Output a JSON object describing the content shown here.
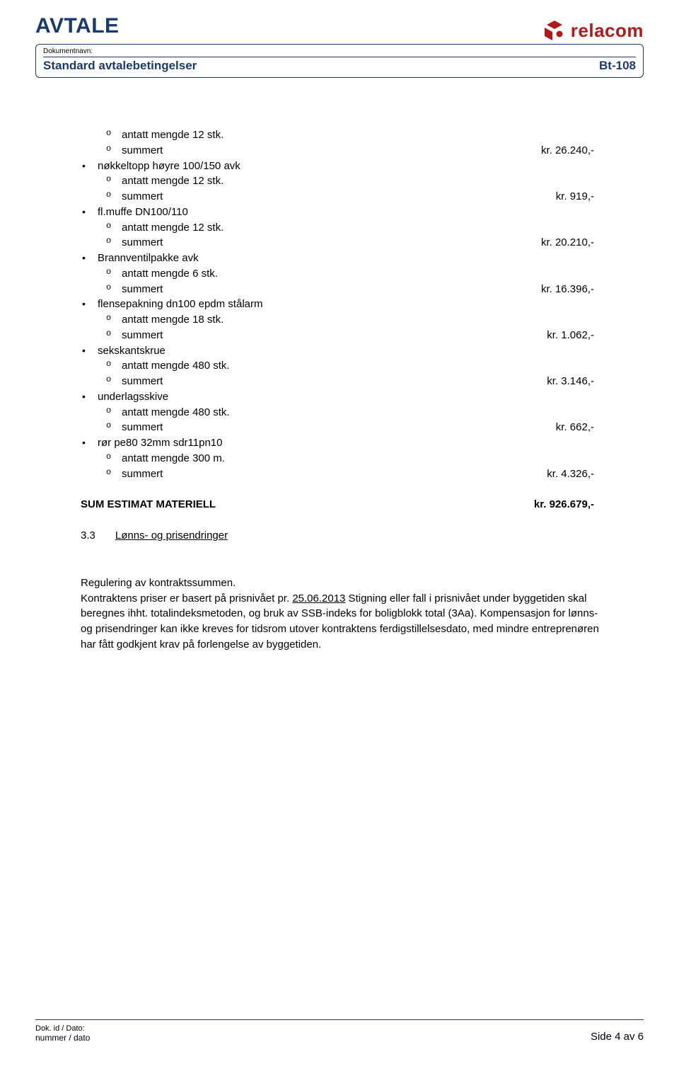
{
  "header": {
    "title": "AVTALE",
    "doc_label": "Dokumentnavn:",
    "doc_name": "Standard avtalebetingelser",
    "doc_code": "Bt-108",
    "logo_text": "relacom",
    "logo_color": "#b01a1a",
    "border_color": "#1a3a6e"
  },
  "items": [
    {
      "label": null,
      "subs": [
        {
          "text": "antatt mengde 12 stk.",
          "price": null
        },
        {
          "text": "summert",
          "price": "kr. 26.240,-"
        }
      ]
    },
    {
      "label": "nøkkeltopp høyre 100/150 avk",
      "subs": [
        {
          "text": "antatt mengde 12 stk.",
          "price": null
        },
        {
          "text": "summert",
          "price": "kr. 919,-"
        }
      ]
    },
    {
      "label": "fl.muffe DN100/110",
      "subs": [
        {
          "text": "antatt mengde 12 stk.",
          "price": null
        },
        {
          "text": "summert",
          "price": "kr. 20.210,-"
        }
      ]
    },
    {
      "label": "Brannventilpakke avk",
      "subs": [
        {
          "text": "antatt mengde 6 stk.",
          "price": null
        },
        {
          "text": "summert",
          "price": "kr. 16.396,-"
        }
      ]
    },
    {
      "label": "flensepakning dn100 epdm stålarm",
      "subs": [
        {
          "text": "antatt mengde 18 stk.",
          "price": null
        },
        {
          "text": "summert",
          "price": "kr. 1.062,-"
        }
      ]
    },
    {
      "label": "sekskantskrue",
      "subs": [
        {
          "text": "antatt mengde 480 stk.",
          "price": null
        },
        {
          "text": "summert",
          "price": "kr. 3.146,-"
        }
      ]
    },
    {
      "label": "underlagsskive",
      "subs": [
        {
          "text": "antatt mengde 480 stk.",
          "price": null
        },
        {
          "text": "summert",
          "price": "kr. 662,-"
        }
      ]
    },
    {
      "label": "rør pe80 32mm sdr11pn10",
      "subs": [
        {
          "text": "antatt mengde 300 m.",
          "price": null
        },
        {
          "text": "summert",
          "price": "kr. 4.326,-"
        }
      ]
    }
  ],
  "sum": {
    "label": "SUM ESTIMAT MATERIELL",
    "price": "kr. 926.679,-"
  },
  "section33": {
    "num": "3.3",
    "title": "Lønns- og prisendringer"
  },
  "body": {
    "p1_a": "Regulering av kontraktssummen.",
    "p2_a": "Kontraktens priser er basert på prisnivået pr. ",
    "p2_u": "25.06.2013",
    "p2_b": " Stigning eller fall i prisnivået under byggetiden skal beregnes ihht. totalindeksmetoden, og bruk av SSB-indeks for boligblokk total (3Aa). Kompensasjon for lønns- og prisendringer kan ikke kreves for tidsrom utover kontraktens ferdigstillelsesdato, med mindre entreprenøren har fått godkjent krav på forlengelse av byggetiden."
  },
  "footer": {
    "left_label": "Dok. id / Dato:",
    "left_value": "nummer / dato",
    "right": "Side 4 av 6"
  }
}
